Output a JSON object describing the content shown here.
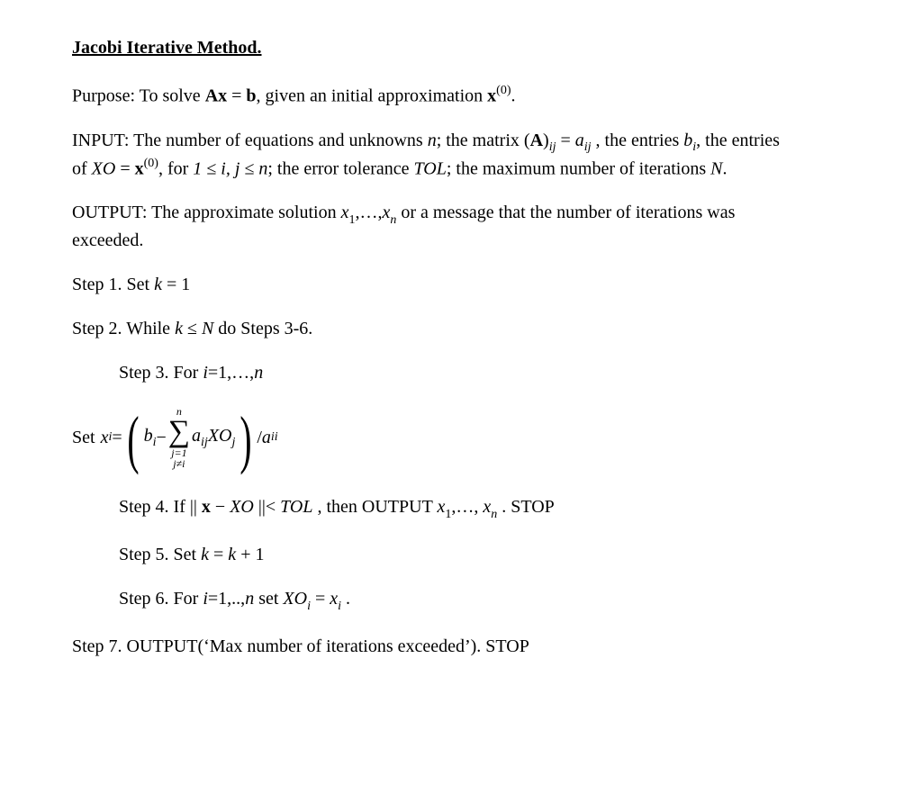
{
  "colors": {
    "text": "#000000",
    "background": "#ffffff"
  },
  "typography": {
    "font_family": "Times New Roman",
    "body_fontsize_pt": 15,
    "title_fontsize_pt": 15,
    "title_bold": true,
    "title_underline": true
  },
  "title": "Jacobi Iterative Method.",
  "purpose": {
    "lead": "Purpose: To solve ",
    "eq_lhs": "Ax",
    "eq_rhs": "b",
    "tail1": ", given an initial approximation ",
    "x": "x",
    "x_sup": "(0)",
    "tail2": "."
  },
  "input": {
    "lead": "INPUT: The number of equations and unknowns ",
    "n": "n",
    "t2": "; the matrix ",
    "A": "A",
    "Asub": "ij",
    "eq": " = ",
    "a": "a",
    "asub": "ij",
    "comma": " , ",
    "t3": "the entries ",
    "b": "b",
    "bsub": "i",
    "t4": ", the entries",
    "line2a": "of ",
    "XO": "XO",
    "eqx": " = ",
    "x": "x",
    "xsup": "(0)",
    "t5": ", for ",
    "cond": "1 ≤ i, j ≤ n",
    "t6": "; the error tolerance ",
    "TOL": "TOL",
    "t7": "; the maximum number of iterations ",
    "N": "N",
    "period": "."
  },
  "output": {
    "lead": "OUTPUT: The approximate solution  ",
    "x1": "x",
    "s1": "1",
    "dots": ",…,",
    "xn": "x",
    "sn": "n",
    "tail": "  or a message that the number of iterations was",
    "line2": "exceeded."
  },
  "step1": {
    "lead": "Step 1. Set ",
    "k": "k",
    "eq": " = 1"
  },
  "step2": {
    "lead": "Step 2. While ",
    "k": "k",
    "le": " ≤ ",
    "N": "N",
    "tail": "  do Steps 3-6."
  },
  "step3": {
    "lead": "Step 3. For ",
    "i": "i",
    "rng": "=1,…,",
    "n": "n"
  },
  "formula": {
    "set": "Set ",
    "xi": "x",
    "xisub": "i",
    "eq": " = ",
    "b": "b",
    "bsub": "i",
    "minus": " − ",
    "sum_top": "n",
    "sum_bot1": "j=1",
    "sum_bot2": "j≠i",
    "a": "a",
    "asub": "ij",
    "XO": "XO",
    "XOsub": "j",
    "div_slash": " / ",
    "aii": "a",
    "aiisub": "ii"
  },
  "step4": {
    "lead": "Step 4. If ",
    "norm1": "|| ",
    "x": "x",
    "minus": " − ",
    "XO": "XO",
    "norm2": " ||< ",
    "TOL": "TOL",
    "t2": " , then OUTPUT ",
    "x1": "x",
    "s1": "1",
    "dots": ",…, ",
    "xn": "x",
    "sn": "n",
    "t3": " . STOP"
  },
  "step5": {
    "lead": "Step 5. Set ",
    "k": "k",
    "eq": " = ",
    "k2": "k",
    "plus": " + 1"
  },
  "step6": {
    "lead": "Step 6. For ",
    "i": "i",
    "rng": "=1,..,",
    "n": "n",
    "t2": " set ",
    "XO": "XO",
    "XOsub": "i",
    "eq": " = ",
    "x": "x",
    "xsub": "i",
    "period": " ."
  },
  "step7": {
    "text": "Step 7. OUTPUT(‘Max number of iterations exceeded’). STOP"
  }
}
